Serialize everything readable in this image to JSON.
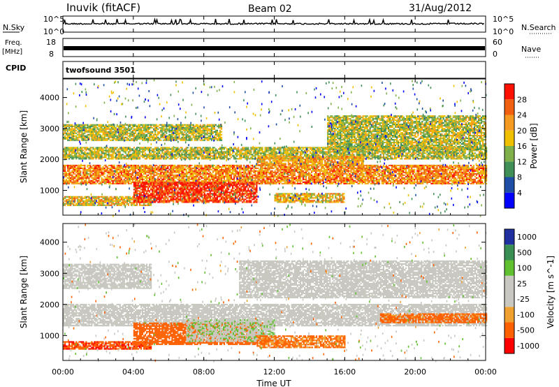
{
  "header": {
    "station": "Inuvik (fitACF)",
    "beam": "Beam 02",
    "date": "31/Aug/2012"
  },
  "side_labels": {
    "nsky": "N.Sky",
    "nsearch": "N.Search",
    "freq_line1": "Freq.",
    "freq_line2": "[MHz]",
    "nave": "Nave",
    "cpid": "CPID",
    "cpid_name": "twofsound 3501"
  },
  "noise_panel": {
    "left_ticks": [
      "10^5",
      "10^0"
    ],
    "right_ticks": [
      "10^5",
      "10^0"
    ]
  },
  "freq_panel": {
    "left_ticks": [
      "18",
      "8"
    ],
    "right_ticks": [
      "60",
      "0"
    ]
  },
  "colors": {
    "power_scale": [
      "#0000ff",
      "#1f4ea6",
      "#3f8f57",
      "#7fb04a",
      "#f0c000",
      "#f59a20",
      "#f06010",
      "#ff1000"
    ],
    "velocity_scale": [
      "#ff0000",
      "#ff6000",
      "#f0a030",
      "#c8c8c0",
      "#c8c8c0",
      "#60c030",
      "#3a8f55",
      "#2030a0"
    ],
    "ground_scatter": "#c8c8c0"
  },
  "power_colorbar": {
    "label": "Power [dB]",
    "ticks": [
      "4",
      "8",
      "12",
      "16",
      "20",
      "24",
      "28"
    ]
  },
  "velocity_colorbar": {
    "label": "Velocity [m s^-1]",
    "ticks": [
      "-1000",
      "-500",
      "-100",
      "-25",
      "25",
      "100",
      "500",
      "1000"
    ]
  },
  "chart_data": [
    {
      "type": "heatmap",
      "panel": "power",
      "ylabel": "Slant Range [km]",
      "y_ticks": [
        1000,
        2000,
        3000,
        4000
      ],
      "ylim": [
        200,
        4600
      ],
      "xlim_hours": [
        0,
        24
      ],
      "description_units": "dB",
      "scale": [
        0,
        30
      ],
      "bands": [
        {
          "t0": 0,
          "t1": 24,
          "r0": 1200,
          "r1": 1800,
          "level": 22
        },
        {
          "t0": 0,
          "t1": 5,
          "r0": 500,
          "r1": 800,
          "level": 18
        },
        {
          "t0": 4,
          "t1": 11,
          "r0": 600,
          "r1": 1250,
          "level": 27
        },
        {
          "t0": 12,
          "t1": 16,
          "r0": 600,
          "r1": 900,
          "level": 18
        },
        {
          "t0": 0,
          "t1": 24,
          "r0": 2000,
          "r1": 2400,
          "level": 15
        },
        {
          "t0": 0,
          "t1": 9,
          "r0": 2600,
          "r1": 3100,
          "level": 15
        },
        {
          "t0": 15,
          "t1": 24,
          "r0": 2300,
          "r1": 3400,
          "level": 15
        },
        {
          "t0": 11,
          "t1": 17,
          "r0": 1800,
          "r1": 2100,
          "level": 20
        }
      ]
    },
    {
      "type": "heatmap",
      "panel": "velocity",
      "ylabel": "Slant Range [km]",
      "y_ticks": [
        1000,
        2000,
        3000,
        4000
      ],
      "ylim": [
        200,
        4600
      ],
      "xlim_hours": [
        0,
        24
      ],
      "xlabel": "Time UT",
      "x_ticks": [
        "00:00",
        "04:00",
        "08:00",
        "12:00",
        "16:00",
        "20:00",
        "00:00"
      ],
      "description_units": "m s^-1",
      "bands": [
        {
          "t0": 0,
          "t1": 24,
          "r0": 1300,
          "r1": 2000,
          "value": 0
        },
        {
          "t0": 0,
          "t1": 5,
          "r0": 550,
          "r1": 800,
          "value": -400
        },
        {
          "t0": 4,
          "t1": 11,
          "r0": 700,
          "r1": 1400,
          "value": -300
        },
        {
          "t0": 7,
          "t1": 12,
          "r0": 800,
          "r1": 1500,
          "value": 80
        },
        {
          "t0": 11,
          "t1": 16,
          "r0": 600,
          "r1": 1000,
          "value": -120
        },
        {
          "t0": 0,
          "t1": 5,
          "r0": 2500,
          "r1": 3300,
          "value": 0
        },
        {
          "t0": 10,
          "t1": 24,
          "r0": 2200,
          "r1": 3400,
          "value": 0
        },
        {
          "t0": 18,
          "t1": 24,
          "r0": 1400,
          "r1": 1700,
          "value": -150
        }
      ]
    }
  ],
  "x_axis": {
    "label": "Time UT",
    "ticks": [
      "00:00",
      "04:00",
      "08:00",
      "12:00",
      "16:00",
      "20:00",
      "00:00"
    ]
  },
  "y_axis": {
    "label": "Slant Range [km]",
    "ticks": [
      "1000",
      "2000",
      "3000",
      "4000"
    ]
  }
}
